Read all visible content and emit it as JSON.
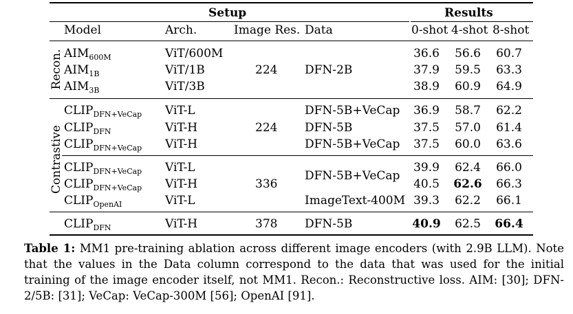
{
  "headers": {
    "setup": "Setup",
    "results": "Results",
    "model": "Model",
    "arch": "Arch.",
    "image_res": "Image Res.",
    "data": "Data",
    "zero_shot": "0-shot",
    "four_shot": "4-shot",
    "eight_shot": "8-shot"
  },
  "groups": {
    "recon": "Recon.",
    "contrastive": "Contrastive"
  },
  "rows": [
    {
      "model": "AIM",
      "sub": "600M",
      "arch": "ViT/600M",
      "res": "",
      "data": "",
      "s0": "36.6",
      "s4": "56.6",
      "s8": "60.7"
    },
    {
      "model": "AIM",
      "sub": "1B",
      "arch": "ViT/1B",
      "res": "224",
      "data": "DFN-2B",
      "s0": "37.9",
      "s4": "59.5",
      "s8": "63.3"
    },
    {
      "model": "AIM",
      "sub": "3B",
      "arch": "ViT/3B",
      "res": "",
      "data": "",
      "s0": "38.9",
      "s4": "60.9",
      "s8": "64.9"
    },
    {
      "model": "CLIP",
      "sub": "DFN+VeCap",
      "arch": "ViT-L",
      "res": "",
      "data": "DFN-5B+VeCap",
      "s0": "36.9",
      "s4": "58.7",
      "s8": "62.2"
    },
    {
      "model": "CLIP",
      "sub": "DFN",
      "arch": "ViT-H",
      "res": "224",
      "data": "DFN-5B",
      "s0": "37.5",
      "s4": "57.0",
      "s8": "61.4"
    },
    {
      "model": "CLIP",
      "sub": "DFN+VeCap",
      "arch": "ViT-H",
      "res": "",
      "data": "DFN-5B+VeCap",
      "s0": "37.5",
      "s4": "60.0",
      "s8": "63.6"
    },
    {
      "model": "CLIP",
      "sub": "DFN+VeCap",
      "arch": "ViT-L",
      "res": "",
      "data": "",
      "s0": "39.9",
      "s4": "62.4",
      "s8": "66.0"
    },
    {
      "model": "CLIP",
      "sub": "DFN+VeCap",
      "arch": "ViT-H",
      "res": "336",
      "data": "DFN-5B+VeCap",
      "s0": "40.5",
      "s4": "62.6",
      "s8": "66.3"
    },
    {
      "model": "CLIP",
      "sub": "OpenAI",
      "arch": "ViT-L",
      "res": "",
      "data": "ImageText-400M",
      "s0": "39.3",
      "s4": "62.2",
      "s8": "66.1"
    },
    {
      "model": "CLIP",
      "sub": "DFN",
      "arch": "ViT-H",
      "res": "378",
      "data": "DFN-5B",
      "s0": "40.9",
      "s4": "62.5",
      "s8": "66.4"
    }
  ],
  "caption": {
    "label": "Table 1:",
    "text": "MM1 pre-training ablation across different image encoders (with 2.9B LLM). Note that the values in the Data column correspond to the data that was used for the initial training of the image encoder itself, not MM1. Recon.: Reconstructive loss. AIM: [30]; DFN-2/5B: [31]; VeCap: VeCap-300M [56]; OpenAI [91]."
  }
}
